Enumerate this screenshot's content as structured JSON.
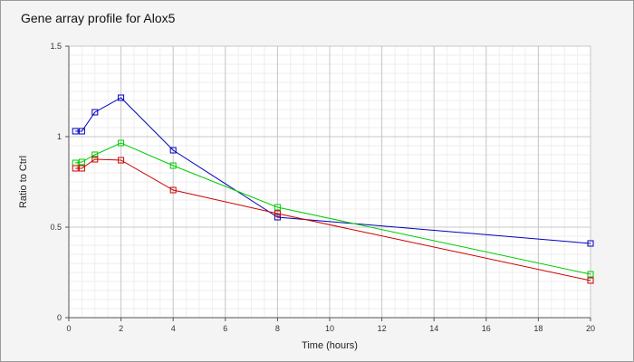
{
  "chart_data": {
    "type": "line",
    "title": "Gene array profile for Alox5",
    "xlabel": "Time (hours)",
    "ylabel": "Ratio to Ctrl",
    "xlim": [
      0,
      20
    ],
    "ylim": [
      0,
      1.5
    ],
    "x_ticks": [
      "0",
      "2",
      "4",
      "6",
      "8",
      "10",
      "12",
      "14",
      "16",
      "18",
      "20"
    ],
    "y_ticks": [
      "0",
      "0.5",
      "1",
      "1.5"
    ],
    "grid": true,
    "marker": "square",
    "series": [
      {
        "color": "#0000bb",
        "points": [
          [
            0.25,
            1.03
          ],
          [
            0.5,
            1.03
          ],
          [
            1,
            1.135
          ],
          [
            2,
            1.215
          ],
          [
            4,
            0.925
          ],
          [
            8,
            0.555
          ],
          [
            20,
            0.41
          ]
        ]
      },
      {
        "color": "#00cc00",
        "points": [
          [
            0.25,
            0.855
          ],
          [
            0.5,
            0.86
          ],
          [
            1,
            0.9
          ],
          [
            2,
            0.965
          ],
          [
            4,
            0.84
          ],
          [
            8,
            0.61
          ],
          [
            20,
            0.24
          ]
        ]
      },
      {
        "color": "#cc0000",
        "points": [
          [
            0.25,
            0.825
          ],
          [
            0.5,
            0.825
          ],
          [
            1,
            0.875
          ],
          [
            2,
            0.87
          ],
          [
            4,
            0.705
          ],
          [
            8,
            0.575
          ],
          [
            20,
            0.205
          ]
        ]
      }
    ]
  }
}
